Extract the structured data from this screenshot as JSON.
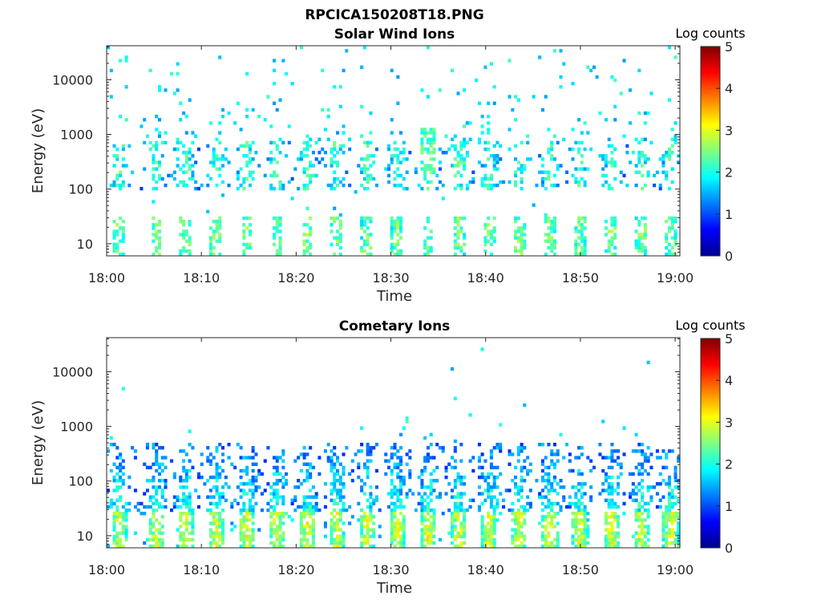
{
  "figure_title": "RPCICA150208T18.PNG",
  "chart_data": [
    {
      "type": "heatmap",
      "title": "Solar Wind Ions",
      "xlabel": "Time",
      "ylabel": "Energy (eV)",
      "x_tick_labels": [
        "18:00",
        "18:10",
        "18:20",
        "18:30",
        "18:40",
        "18:50",
        "19:00"
      ],
      "x_range_minutes": [
        0,
        60.5
      ],
      "y_scale": "log",
      "y_range_eV": [
        6,
        42000
      ],
      "y_tick_values": [
        10,
        100,
        1000,
        10000
      ],
      "y_tick_labels": [
        "10",
        "100",
        "1000",
        "10000"
      ],
      "colorbar": {
        "label": "Log counts",
        "range": [
          0,
          5
        ],
        "tick_labels": [
          "0",
          "1",
          "2",
          "3",
          "4",
          "5"
        ],
        "colormap": "jet"
      },
      "sweep_times_min": [
        1.2,
        5.1,
        8.2,
        11.4,
        14.6,
        17.8,
        21.0,
        24.1,
        27.3,
        30.5,
        33.8,
        37.0,
        40.2,
        43.4,
        46.6,
        49.8,
        53.1,
        56.3,
        59.4
      ],
      "scattered_high_energy_ions_min_eV": [
        10000,
        40000
      ],
      "notes": "Sparse counts; strongest near 18:34 and 18:37 (~200-400 eV), level ~2-3 log counts"
    },
    {
      "type": "heatmap",
      "title": "Cometary Ions",
      "xlabel": "Time",
      "ylabel": "Energy (eV)",
      "x_tick_labels": [
        "18:00",
        "18:10",
        "18:20",
        "18:30",
        "18:40",
        "18:50",
        "19:00"
      ],
      "x_range_minutes": [
        0,
        60.5
      ],
      "y_scale": "log",
      "y_range_eV": [
        6,
        42000
      ],
      "y_tick_values": [
        10,
        100,
        1000,
        10000
      ],
      "y_tick_labels": [
        "10",
        "100",
        "1000",
        "10000"
      ],
      "colorbar": {
        "label": "Log counts",
        "range": [
          0,
          5
        ],
        "tick_labels": [
          "0",
          "1",
          "2",
          "3",
          "4",
          "5"
        ],
        "colormap": "jet"
      },
      "sweep_times_min": [
        1.2,
        5.1,
        8.2,
        11.4,
        14.6,
        17.8,
        21.0,
        24.1,
        27.3,
        30.5,
        33.8,
        37.0,
        40.2,
        43.4,
        46.6,
        49.8,
        53.1,
        56.3,
        59.4
      ],
      "notes": "Counts concentrated below ~500 eV, peaking ~2-3 log counts near 10-20 eV"
    }
  ]
}
